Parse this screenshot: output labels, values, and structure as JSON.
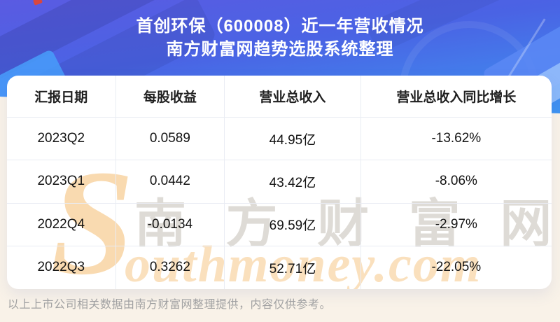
{
  "header": {
    "title": "首创环保（600008）近一年营收情况",
    "subtitle": "南方财富网趋势选股系统整理"
  },
  "table": {
    "columns": [
      "汇报日期",
      "每股收益",
      "营业总收入",
      "营业总收入同比增长"
    ],
    "rows": [
      [
        "2023Q2",
        "0.0589",
        "44.95亿",
        "-13.62%"
      ],
      [
        "2023Q1",
        "0.0442",
        "43.42亿",
        "-8.06%"
      ],
      [
        "2022Q4",
        "-0.0134",
        "69.59亿",
        "-2.97%"
      ],
      [
        "2022Q3",
        "0.3262",
        "52.71亿",
        "-22.05%"
      ]
    ]
  },
  "watermark": {
    "cjk": "南方财富网",
    "latin_initial": "S",
    "latin_rest": "outhmoney.com"
  },
  "footer": {
    "note": "以上上市公司相关数据由南方财富网整理提供，内容仅供参考。"
  },
  "colors": {
    "banner_gradient_top": "#5a5be2",
    "banner_gradient_bottom": "#3d96f2",
    "page_background": "#f9f2e8",
    "card_background": "#ffffff",
    "grid_line": "#e9ecf3",
    "title_text": "#ffffff",
    "cell_text": "#131313",
    "footer_text": "#a2a2a2",
    "watermark_orange": "#f6c480",
    "watermark_gray": "#8a7e6c"
  },
  "chart_data": {
    "type": "table",
    "title": "首创环保（600008）近一年营收情况",
    "subtitle": "南方财富网趋势选股系统整理",
    "columns": [
      "汇报日期",
      "每股收益",
      "营业总收入",
      "营业总收入同比增长"
    ],
    "rows": [
      [
        "2023Q2",
        "0.0589",
        "44.95亿",
        "-13.62%"
      ],
      [
        "2023Q1",
        "0.0442",
        "43.42亿",
        "-8.06%"
      ],
      [
        "2022Q4",
        "-0.0134",
        "69.59亿",
        "-2.97%"
      ],
      [
        "2022Q3",
        "0.3262",
        "52.71亿",
        "-22.05%"
      ]
    ],
    "series": [
      {
        "name": "每股收益",
        "values": [
          0.0589,
          0.0442,
          -0.0134,
          0.3262
        ]
      },
      {
        "name": "营业总收入(亿)",
        "values": [
          44.95,
          43.42,
          69.59,
          52.71
        ]
      },
      {
        "name": "营业总收入同比增长(%)",
        "values": [
          -13.62,
          -8.06,
          -2.97,
          -22.05
        ]
      }
    ],
    "categories": [
      "2023Q2",
      "2023Q1",
      "2022Q4",
      "2022Q3"
    ]
  }
}
